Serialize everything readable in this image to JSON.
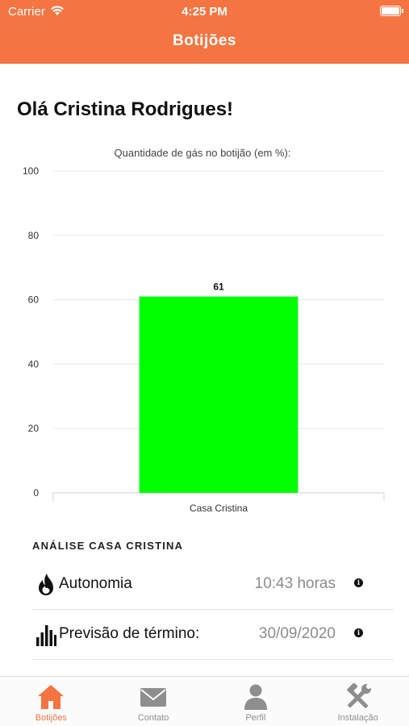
{
  "status_bar": {
    "carrier": "Carrier",
    "time": "4:25 PM"
  },
  "header": {
    "title": "Botijões",
    "color": "#f47542"
  },
  "greeting": "Olá Cristina Rodrigues!",
  "chart_data": {
    "type": "bar",
    "title": "Quantidade de gás no botijão (em %):",
    "categories": [
      "Casa Cristina"
    ],
    "values": [
      61
    ],
    "data_labels": [
      "61"
    ],
    "ylim": [
      0,
      100
    ],
    "yticks": [
      0,
      20,
      40,
      60,
      80,
      100
    ],
    "bar_color": "#00ff00",
    "grid": true
  },
  "analysis": {
    "heading": "ANÁLISE CASA CRISTINA",
    "rows": [
      {
        "icon": "flame-icon",
        "label": "Autonomia",
        "value": "10:43 horas"
      },
      {
        "icon": "bar-chart-icon",
        "label": "Previsão de término:",
        "value": "30/09/2020"
      }
    ]
  },
  "tabs": [
    {
      "label": "Botijões",
      "icon": "home-icon",
      "active": true
    },
    {
      "label": "Contato",
      "icon": "mail-icon",
      "active": false
    },
    {
      "label": "Perfil",
      "icon": "user-icon",
      "active": false
    },
    {
      "label": "Instalação",
      "icon": "tools-icon",
      "active": false
    }
  ]
}
